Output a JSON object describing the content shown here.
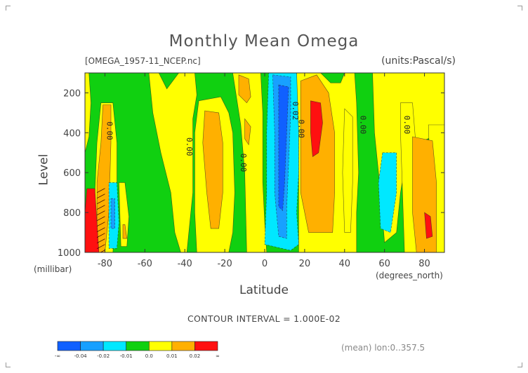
{
  "chart_data": {
    "type": "heatmap",
    "title": "Monthly Mean Omega",
    "source_label": "[OMEGA_1957-11_NCEP.nc]",
    "units_label": "(units:Pascal/s)",
    "ylabel": "Level",
    "ylabel_unit": "(millibar)",
    "xlabel": "Latitude",
    "xlabel_unit": "(degrees_north)",
    "xlim": [
      -90,
      90
    ],
    "ylim": [
      1000,
      100
    ],
    "x_ticks": [
      "-80",
      "-60",
      "-40",
      "-20",
      "0",
      "20",
      "40",
      "60",
      "80"
    ],
    "x_tick_values": [
      -80,
      -60,
      -40,
      -20,
      0,
      20,
      40,
      60,
      80
    ],
    "y_ticks": [
      "200",
      "400",
      "600",
      "800",
      "1000"
    ],
    "y_tick_values": [
      200,
      400,
      600,
      800,
      1000
    ],
    "contour_interval_text": "CONTOUR INTERVAL = 1.000E-02",
    "mean_text": "(mean) lon:0..357.5",
    "colorbar": {
      "labels": [
        "-∞",
        "-0.04",
        "-0.02",
        "-0.01",
        "0.0",
        "0.01",
        "0.02",
        "∞"
      ],
      "colors": [
        "#1060ff",
        "#18a0ff",
        "#00e8ff",
        "#10d010",
        "#ffff00",
        "#ffb000",
        "#ff1010"
      ]
    },
    "contour_labels": [
      {
        "text": "0.00",
        "lat": -79,
        "level": 390
      },
      {
        "text": "0.00",
        "lat": -39,
        "level": 470
      },
      {
        "text": "0.00",
        "lat": -12,
        "level": 550
      },
      {
        "text": "0.02",
        "lat": 14,
        "level": 290
      },
      {
        "text": "0.00",
        "lat": 17,
        "level": 380
      },
      {
        "text": "0.00",
        "lat": 48,
        "level": 360
      },
      {
        "text": "0.00",
        "lat": 70,
        "level": 360
      }
    ],
    "regions": [
      {
        "value": 0.01,
        "points": [
          [
            -90,
            100
          ],
          [
            -88,
            100
          ],
          [
            -87,
            250
          ],
          [
            -88,
            420
          ],
          [
            -90,
            500
          ]
        ]
      },
      {
        "value": 0.01,
        "points": [
          [
            -82,
            250
          ],
          [
            -76,
            250
          ],
          [
            -74,
            450
          ],
          [
            -74,
            650
          ],
          [
            -76,
            1000
          ],
          [
            -84,
            1000
          ],
          [
            -85,
            700
          ],
          [
            -84,
            450
          ]
        ]
      },
      {
        "value": 0.02,
        "points": [
          [
            -81,
            260
          ],
          [
            -77,
            260
          ],
          [
            -77,
            450
          ],
          [
            -78,
            800
          ],
          [
            -80,
            1000
          ],
          [
            -84,
            1000
          ],
          [
            -84,
            650
          ],
          [
            -82,
            450
          ]
        ]
      },
      {
        "value": -0.01,
        "points": [
          [
            -78,
            650
          ],
          [
            -74,
            650
          ],
          [
            -73,
            850
          ],
          [
            -74,
            980
          ],
          [
            -78,
            980
          ]
        ]
      },
      {
        "value": -0.02,
        "points": [
          [
            -77,
            730
          ],
          [
            -75,
            730
          ],
          [
            -75,
            880
          ],
          [
            -77,
            880
          ]
        ]
      },
      {
        "value": 0.01,
        "points": [
          [
            -73,
            650
          ],
          [
            -70,
            650
          ],
          [
            -68,
            820
          ],
          [
            -69,
            970
          ],
          [
            -72,
            970
          ]
        ]
      },
      {
        "value": 0.02,
        "points": [
          [
            -71,
            860
          ],
          [
            -70,
            860
          ],
          [
            -69,
            930
          ],
          [
            -71,
            930
          ]
        ]
      },
      {
        "value": 0.04,
        "points": [
          [
            -89,
            680
          ],
          [
            -85,
            680
          ],
          [
            -84,
            850
          ],
          [
            -83,
            1000
          ],
          [
            -90,
            1000
          ],
          [
            -90,
            800
          ]
        ]
      },
      {
        "value": 0.01,
        "points": [
          [
            -58,
            100
          ],
          [
            -53,
            100
          ],
          [
            -49,
            180
          ],
          [
            -43,
            100
          ],
          [
            -35,
            100
          ],
          [
            -34,
            210
          ],
          [
            -36,
            330
          ],
          [
            -36,
            700
          ],
          [
            -38,
            900
          ],
          [
            -39,
            1000
          ],
          [
            -42,
            1000
          ],
          [
            -45,
            900
          ],
          [
            -47,
            700
          ],
          [
            -52,
            500
          ],
          [
            -56,
            300
          ]
        ]
      },
      {
        "value": 0.01,
        "points": [
          [
            -33,
            240
          ],
          [
            -22,
            220
          ],
          [
            -18,
            300
          ],
          [
            -16,
            400
          ],
          [
            -15,
            700
          ],
          [
            -16,
            900
          ],
          [
            -18,
            1000
          ],
          [
            -34,
            1000
          ],
          [
            -35,
            800
          ],
          [
            -35,
            400
          ]
        ]
      },
      {
        "value": 0.02,
        "points": [
          [
            -30,
            290
          ],
          [
            -23,
            300
          ],
          [
            -21,
            450
          ],
          [
            -21,
            700
          ],
          [
            -23,
            880
          ],
          [
            -27,
            880
          ],
          [
            -29,
            700
          ],
          [
            -31,
            450
          ]
        ]
      },
      {
        "value": 0.01,
        "points": [
          [
            -16,
            100
          ],
          [
            -2,
            100
          ],
          [
            -1,
            300
          ],
          [
            -1,
            650
          ],
          [
            0,
            850
          ],
          [
            1,
            1000
          ],
          [
            -9,
            1000
          ],
          [
            -10,
            600
          ],
          [
            -12,
            360
          ],
          [
            -14,
            230
          ]
        ]
      },
      {
        "value": 0.02,
        "points": [
          [
            -13,
            110
          ],
          [
            -8,
            130
          ],
          [
            -7,
            220
          ],
          [
            -9,
            250
          ],
          [
            -13,
            210
          ]
        ]
      },
      {
        "value": 0.02,
        "points": [
          [
            -10,
            330
          ],
          [
            -7,
            370
          ],
          [
            -8,
            460
          ],
          [
            -10,
            430
          ]
        ]
      },
      {
        "value": -0.01,
        "points": [
          [
            2,
            100
          ],
          [
            16,
            100
          ],
          [
            17,
            200
          ],
          [
            17,
            350
          ],
          [
            17,
            600
          ],
          [
            16,
            800
          ],
          [
            17,
            960
          ],
          [
            13,
            990
          ],
          [
            0,
            960
          ],
          [
            1,
            700
          ],
          [
            1,
            400
          ]
        ]
      },
      {
        "value": -0.02,
        "points": [
          [
            4,
            110
          ],
          [
            13,
            120
          ],
          [
            13,
            300
          ],
          [
            12,
            550
          ],
          [
            11,
            780
          ],
          [
            11,
            930
          ],
          [
            7,
            920
          ],
          [
            5,
            700
          ],
          [
            5,
            400
          ]
        ]
      },
      {
        "value": -0.03,
        "points": [
          [
            7,
            160
          ],
          [
            12,
            170
          ],
          [
            11,
            400
          ],
          [
            10,
            650
          ],
          [
            9,
            790
          ],
          [
            7,
            770
          ],
          [
            7,
            400
          ]
        ]
      },
      {
        "value": 0.01,
        "points": [
          [
            16,
            100
          ],
          [
            28,
            100
          ],
          [
            33,
            150
          ],
          [
            38,
            150
          ],
          [
            40,
            100
          ],
          [
            45,
            100
          ],
          [
            46,
            250
          ],
          [
            47,
            600
          ],
          [
            46,
            800
          ],
          [
            46,
            1000
          ],
          [
            17,
            1000
          ],
          [
            17,
            800
          ],
          [
            17,
            400
          ]
        ]
      },
      {
        "value": 0.02,
        "points": [
          [
            18,
            140
          ],
          [
            26,
            110
          ],
          [
            32,
            200
          ],
          [
            35,
            400
          ],
          [
            35,
            700
          ],
          [
            34,
            900
          ],
          [
            22,
            900
          ],
          [
            18,
            700
          ],
          [
            18,
            400
          ]
        ]
      },
      {
        "value": 0.03,
        "points": [
          [
            23,
            240
          ],
          [
            28,
            250
          ],
          [
            29,
            350
          ],
          [
            27,
            500
          ],
          [
            24,
            520
          ],
          [
            23,
            400
          ]
        ]
      },
      {
        "value": 0.01,
        "points": [
          [
            40,
            280
          ],
          [
            44,
            320
          ],
          [
            44,
            650
          ],
          [
            43,
            900
          ],
          [
            40,
            900
          ],
          [
            39,
            600
          ]
        ]
      },
      {
        "value": 0.01,
        "points": [
          [
            54,
            100
          ],
          [
            90,
            100
          ],
          [
            90,
            390
          ],
          [
            84,
            420
          ],
          [
            75,
            460
          ],
          [
            70,
            580
          ],
          [
            68,
            700
          ],
          [
            66,
            900
          ],
          [
            60,
            950
          ],
          [
            58,
            700
          ],
          [
            55,
            400
          ]
        ]
      },
      {
        "value": -0.01,
        "points": [
          [
            59,
            500
          ],
          [
            66,
            500
          ],
          [
            66,
            700
          ],
          [
            63,
            900
          ],
          [
            58,
            880
          ],
          [
            57,
            650
          ]
        ]
      },
      {
        "value": 0.01,
        "points": [
          [
            68,
            250
          ],
          [
            74,
            250
          ],
          [
            76,
            500
          ],
          [
            77,
            800
          ],
          [
            80,
            1000
          ],
          [
            70,
            1000
          ],
          [
            69,
            700
          ],
          [
            68,
            400
          ]
        ]
      },
      {
        "value": 0.01,
        "points": [
          [
            82,
            360
          ],
          [
            90,
            360
          ],
          [
            90,
            1000
          ],
          [
            84,
            1000
          ],
          [
            83,
            700
          ]
        ]
      },
      {
        "value": 0.02,
        "points": [
          [
            74,
            420
          ],
          [
            84,
            440
          ],
          [
            86,
            650
          ],
          [
            86,
            1000
          ],
          [
            76,
            1000
          ],
          [
            74,
            800
          ]
        ]
      },
      {
        "value": 0.03,
        "points": [
          [
            80,
            800
          ],
          [
            83,
            820
          ],
          [
            84,
            920
          ],
          [
            81,
            930
          ]
        ]
      }
    ]
  }
}
